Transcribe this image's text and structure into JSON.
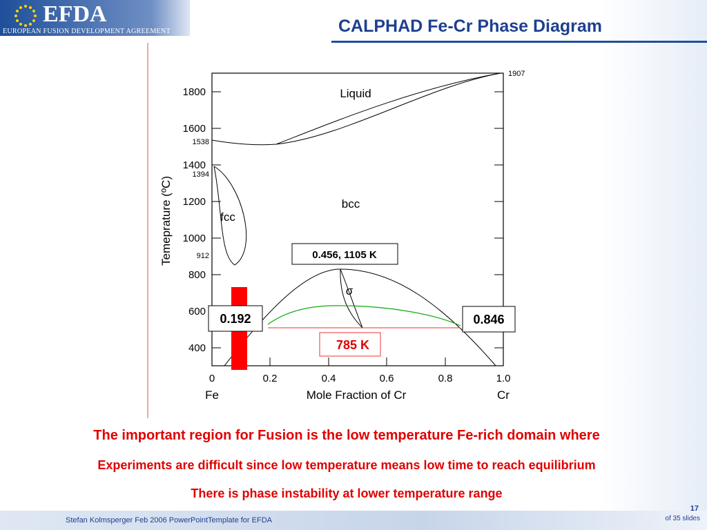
{
  "header": {
    "logo": "EFDA",
    "organization": "EUROPEAN FUSION DEVELOPMENT AGREEMENT",
    "title": "CALPHAD Fe-Cr Phase Diagram"
  },
  "diagram": {
    "y_label": "Temeprature (ºC)",
    "x_label": "Mole Fraction of Cr",
    "y_tick_labels": [
      "400",
      "600",
      "800",
      "1000",
      "1200",
      "1400",
      "1600",
      "1800"
    ],
    "special_labels": [
      "1907",
      "1538",
      "1394",
      "912"
    ],
    "x_tick_labels": [
      "0",
      "0.2",
      "0.4",
      "0.6",
      "0.8",
      "1.0"
    ],
    "x_end_labels": [
      "Fe",
      "Cr"
    ],
    "regions": [
      "Liquid",
      "bcc",
      "fcc",
      "σ"
    ],
    "callouts": [
      "0.456, 1105 K",
      "0.192",
      "0.846",
      "785 K"
    ]
  },
  "body": [
    "The important region for Fusion is the low temperature Fe-rich domain where",
    "Experiments are  difficult since low temperature means low time to reach equilibrium",
    "There is phase instability at lower temperature range"
  ],
  "footer": {
    "author": "Stefan Kolmsperger Feb 2006 PowerPointTemplate for EFDA",
    "page": "17",
    "total": "of  35 slides"
  }
}
